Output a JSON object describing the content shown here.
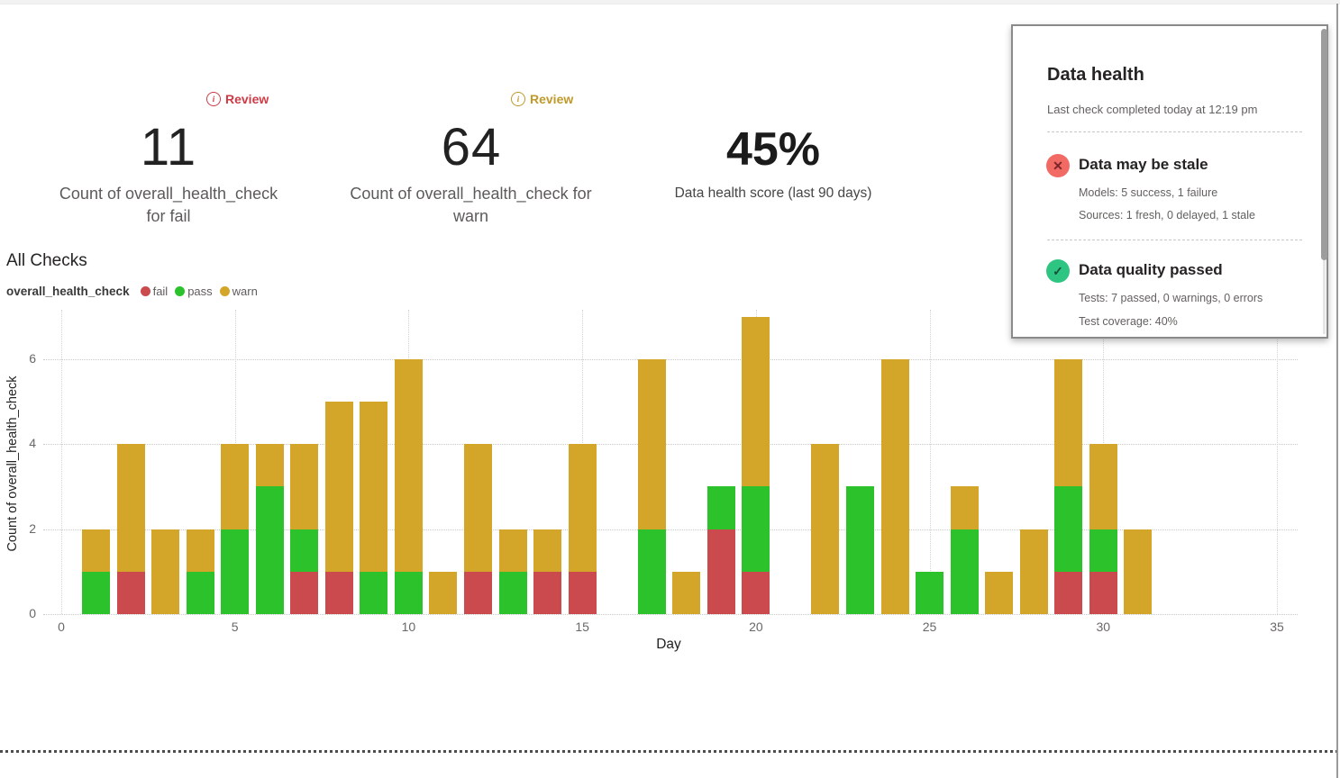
{
  "kpi_cards": [
    {
      "badge_label": "Review",
      "badge_color": "#ce3b45",
      "info_glyph": "i",
      "value": "11",
      "label": "Count of overall_health_check for fail"
    },
    {
      "badge_label": "Review",
      "badge_color": "#c0992b",
      "info_glyph": "i",
      "value": "64",
      "label": "Count of overall_health_check for warn"
    },
    {
      "value": "45%",
      "label": "Data health score (last 90 days)"
    }
  ],
  "section_title": "All Checks",
  "legend": {
    "series_name": "overall_health_check",
    "items": [
      {
        "label": "fail",
        "color": "#cb4a4e"
      },
      {
        "label": "pass",
        "color": "#2bc22b"
      },
      {
        "label": "warn",
        "color": "#d3a629"
      }
    ]
  },
  "chart_data": {
    "type": "bar",
    "stacked": true,
    "title": "All Checks",
    "xlabel": "Day",
    "ylabel": "Count of overall_health_check",
    "x_ticks": [
      0,
      5,
      10,
      15,
      20,
      25,
      30,
      35
    ],
    "y_ticks": [
      0,
      2,
      4,
      6
    ],
    "xlim": [
      0,
      35
    ],
    "ylim": [
      0,
      7
    ],
    "grid": "dotted",
    "legend_position": "top-left",
    "stack_order": [
      "fail",
      "pass",
      "warn"
    ],
    "colors": {
      "fail": "#cb4a4e",
      "pass": "#2bc22b",
      "warn": "#d3a629"
    },
    "days": [
      {
        "day": 1,
        "fail": 0,
        "pass": 1,
        "warn": 1
      },
      {
        "day": 2,
        "fail": 1,
        "pass": 0,
        "warn": 3
      },
      {
        "day": 3,
        "fail": 0,
        "pass": 0,
        "warn": 2
      },
      {
        "day": 4,
        "fail": 0,
        "pass": 1,
        "warn": 1
      },
      {
        "day": 5,
        "fail": 0,
        "pass": 2,
        "warn": 2
      },
      {
        "day": 6,
        "fail": 0,
        "pass": 3,
        "warn": 1
      },
      {
        "day": 7,
        "fail": 1,
        "pass": 1,
        "warn": 2
      },
      {
        "day": 8,
        "fail": 1,
        "pass": 0,
        "warn": 4
      },
      {
        "day": 9,
        "fail": 0,
        "pass": 1,
        "warn": 4
      },
      {
        "day": 10,
        "fail": 0,
        "pass": 1,
        "warn": 5
      },
      {
        "day": 11,
        "fail": 0,
        "pass": 0,
        "warn": 1
      },
      {
        "day": 12,
        "fail": 1,
        "pass": 0,
        "warn": 3
      },
      {
        "day": 13,
        "fail": 0,
        "pass": 1,
        "warn": 1
      },
      {
        "day": 14,
        "fail": 1,
        "pass": 0,
        "warn": 1
      },
      {
        "day": 15,
        "fail": 1,
        "pass": 0,
        "warn": 3
      },
      {
        "day": 17,
        "fail": 0,
        "pass": 2,
        "warn": 4
      },
      {
        "day": 18,
        "fail": 0,
        "pass": 0,
        "warn": 1
      },
      {
        "day": 19,
        "fail": 2,
        "pass": 1,
        "warn": 0
      },
      {
        "day": 20,
        "fail": 1,
        "pass": 2,
        "warn": 4
      },
      {
        "day": 22,
        "fail": 0,
        "pass": 0,
        "warn": 4
      },
      {
        "day": 23,
        "fail": 0,
        "pass": 3,
        "warn": 0
      },
      {
        "day": 24,
        "fail": 0,
        "pass": 0,
        "warn": 6
      },
      {
        "day": 25,
        "fail": 0,
        "pass": 1,
        "warn": 0
      },
      {
        "day": 26,
        "fail": 0,
        "pass": 2,
        "warn": 1
      },
      {
        "day": 27,
        "fail": 0,
        "pass": 0,
        "warn": 1
      },
      {
        "day": 28,
        "fail": 0,
        "pass": 0,
        "warn": 2
      },
      {
        "day": 29,
        "fail": 1,
        "pass": 2,
        "warn": 3
      },
      {
        "day": 30,
        "fail": 1,
        "pass": 1,
        "warn": 2
      },
      {
        "day": 31,
        "fail": 0,
        "pass": 0,
        "warn": 2
      }
    ]
  },
  "health_panel": {
    "title": "Data health",
    "subtitle": "Last check completed today at 12:19 pm",
    "sections": [
      {
        "icon": "x-circle",
        "icon_bg": "#f16b64",
        "icon_fg": "#7d2429",
        "icon_glyph": "✕",
        "title": "Data may be stale",
        "line1": "Models: 5 success, 1 failure",
        "line2": "Sources: 1 fresh, 0 delayed, 1 stale"
      },
      {
        "icon": "check-circle",
        "icon_bg": "#2ec583",
        "icon_fg": "#14503a",
        "icon_glyph": "✓",
        "title": "Data quality passed",
        "line1": "Tests: 7 passed, 0 warnings, 0 errors",
        "line2": "Test coverage: 40%"
      }
    ]
  }
}
